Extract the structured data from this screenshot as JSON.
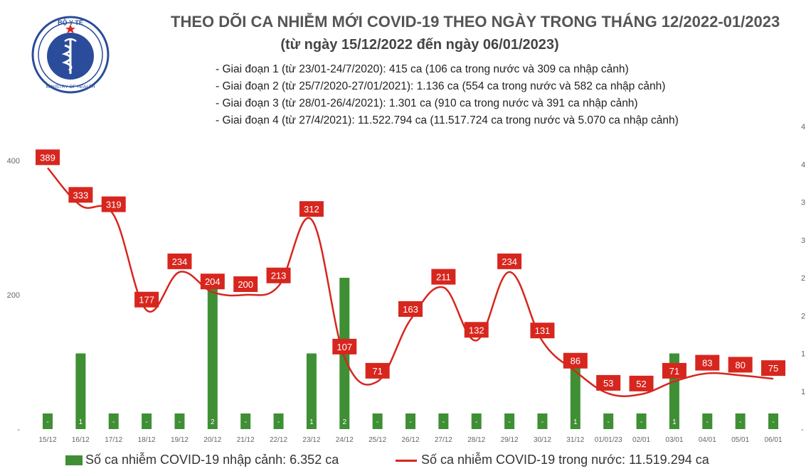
{
  "header": {
    "logo_text_top": "BỘ Y TẾ",
    "logo_text_bottom": "MINISTRY OF HEALTH",
    "title": "THEO DÕI CA NHIỄM MỚI COVID-19 THEO NGÀY TRONG THÁNG 12/2022-01/2023",
    "subtitle": "(từ ngày 15/12/2022 đến ngày 06/01/2023)"
  },
  "phases": [
    "- Giai đoạn 1 (từ 23/01-24/7/2020): 415 ca (106 ca trong nước và 309 ca nhập cảnh)",
    "- Giai đoạn 2 (từ 25/7/2020-27/01/2021): 1.136 ca (554 ca trong nước và 582 ca nhập cảnh)",
    "- Giai đoạn 3 (từ 28/01-26/4/2021): 1.301 ca (910 ca trong nước và 391 ca nhập cảnh)",
    "- Giai đoạn 4 (từ 27/4/2021): 11.522.794 ca (11.517.724 ca trong nước và 5.070 ca nhập cảnh)"
  ],
  "legend": {
    "bar_label": "Số ca nhiễm COVID-19 nhập cảnh: 6.352 ca",
    "line_label": "Số ca nhiễm COVID-19 trong nước: 11.519.294 ca"
  },
  "colors": {
    "bar": "#3f8f35",
    "line": "#d7261e",
    "label_bg": "#d7261e",
    "label_text": "#ffffff",
    "axis_text": "#666666"
  },
  "chart_data": {
    "type": "bar+line",
    "categories": [
      "15/12",
      "16/12",
      "17/12",
      "18/12",
      "19/12",
      "20/12",
      "21/12",
      "22/12",
      "23/12",
      "24/12",
      "25/12",
      "26/12",
      "27/12",
      "28/12",
      "29/12",
      "30/12",
      "31/12",
      "01/01/23",
      "02/01",
      "03/01",
      "04/01",
      "05/01",
      "06/01"
    ],
    "series": [
      {
        "name": "Số ca nhiễm COVID-19 nhập cảnh",
        "type": "bar",
        "axis": "right",
        "values": [
          0,
          1,
          0,
          0,
          0,
          2,
          0,
          0,
          1,
          2,
          0,
          0,
          0,
          0,
          0,
          0,
          1,
          0,
          0,
          1,
          0,
          0,
          0
        ],
        "labels": [
          "-",
          "1",
          "-",
          "-",
          "-",
          "2",
          "-",
          "-",
          "1",
          "2",
          "-",
          "-",
          "-",
          "-",
          "-",
          "-",
          "1",
          "-",
          "-",
          "1",
          "-",
          "-",
          "-"
        ]
      },
      {
        "name": "Số ca nhiễm COVID-19 trong nước",
        "type": "line",
        "axis": "left",
        "values": [
          389,
          333,
          319,
          177,
          234,
          204,
          200,
          213,
          312,
          107,
          71,
          163,
          211,
          132,
          234,
          131,
          86,
          53,
          52,
          71,
          83,
          80,
          75
        ],
        "labels": [
          "389",
          "333",
          "319",
          "177",
          "234",
          "204",
          "200",
          "213",
          "312",
          "107",
          "71",
          "163",
          "211",
          "132",
          "234",
          "131",
          "86",
          "53",
          "52",
          "71",
          "83",
          "80",
          "75"
        ]
      }
    ],
    "left_axis": {
      "ylim": [
        0,
        400
      ],
      "ticks": [
        "-",
        "200",
        "400"
      ]
    },
    "right_axis": {
      "ylim": [
        0,
        4
      ],
      "ticks": [
        "-",
        "1",
        "1",
        "2",
        "2",
        "3",
        "3",
        "4",
        "4"
      ]
    },
    "legend_position": "bottom"
  }
}
